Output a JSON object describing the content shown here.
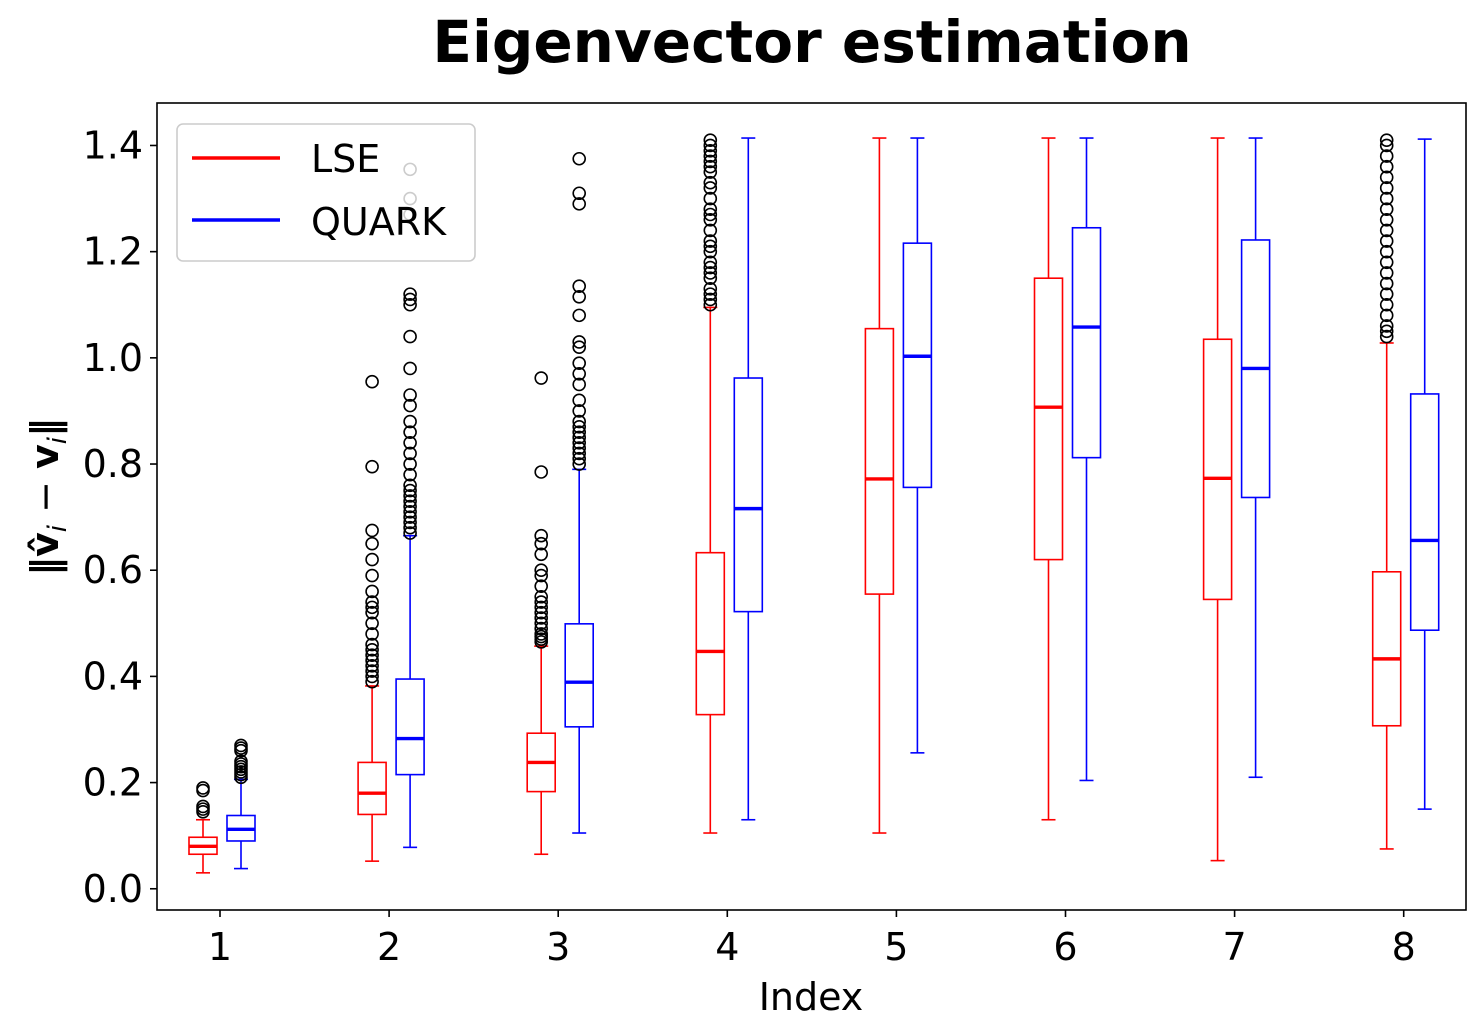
{
  "chart_data": {
    "type": "box",
    "title": "Eigenvector estimation",
    "xlabel": "Index",
    "ylabel": "‖v̂ᵢ − vᵢ‖",
    "ylabel_parts": {
      "bar_left": "‖",
      "v_hat": "v̂",
      "sub1": "i",
      "minus": " − ",
      "v": "v",
      "sub2": "i",
      "bar_right": "‖"
    },
    "categories": [
      "1",
      "2",
      "3",
      "4",
      "5",
      "6",
      "7",
      "8"
    ],
    "ylim": [
      -0.04,
      1.48
    ],
    "yticks": [
      "0.0",
      "0.2",
      "0.4",
      "0.6",
      "0.8",
      "1.0",
      "1.2",
      "1.4"
    ],
    "legend_position": "top-left",
    "grid": false,
    "series": [
      {
        "name": "LSE",
        "color": "#ff0000",
        "boxes": [
          {
            "whislo": 0.03,
            "q1": 0.065,
            "med": 0.08,
            "q3": 0.097,
            "whishi": 0.13,
            "fliers": [
              0.145,
              0.15,
              0.155,
              0.185,
              0.19
            ]
          },
          {
            "whislo": 0.052,
            "q1": 0.14,
            "med": 0.18,
            "q3": 0.238,
            "whishi": 0.382,
            "fliers": [
              0.39,
              0.4,
              0.41,
              0.42,
              0.43,
              0.44,
              0.45,
              0.46,
              0.48,
              0.5,
              0.52,
              0.53,
              0.54,
              0.56,
              0.59,
              0.62,
              0.65,
              0.675,
              0.795,
              0.955
            ]
          },
          {
            "whislo": 0.065,
            "q1": 0.183,
            "med": 0.238,
            "q3": 0.293,
            "whishi": 0.457,
            "fliers": [
              0.465,
              0.47,
              0.475,
              0.48,
              0.49,
              0.5,
              0.51,
              0.52,
              0.53,
              0.54,
              0.55,
              0.57,
              0.59,
              0.6,
              0.63,
              0.65,
              0.665,
              0.785,
              0.962
            ]
          },
          {
            "whislo": 0.105,
            "q1": 0.328,
            "med": 0.447,
            "q3": 0.633,
            "whishi": 1.095,
            "fliers": [
              1.1,
              1.11,
              1.12,
              1.13,
              1.15,
              1.16,
              1.17,
              1.18,
              1.2,
              1.21,
              1.22,
              1.24,
              1.26,
              1.27,
              1.28,
              1.3,
              1.32,
              1.33,
              1.35,
              1.36,
              1.37,
              1.38,
              1.39,
              1.4,
              1.41
            ]
          },
          {
            "whislo": 0.105,
            "q1": 0.555,
            "med": 0.772,
            "q3": 1.055,
            "whishi": 1.414,
            "fliers": []
          },
          {
            "whislo": 0.13,
            "q1": 0.62,
            "med": 0.907,
            "q3": 1.15,
            "whishi": 1.414,
            "fliers": []
          },
          {
            "whislo": 0.053,
            "q1": 0.545,
            "med": 0.773,
            "q3": 1.035,
            "whishi": 1.414,
            "fliers": []
          },
          {
            "whislo": 0.075,
            "q1": 0.307,
            "med": 0.433,
            "q3": 0.597,
            "whishi": 1.028,
            "fliers": [
              1.04,
              1.05,
              1.06,
              1.08,
              1.1,
              1.12,
              1.14,
              1.16,
              1.18,
              1.2,
              1.22,
              1.24,
              1.26,
              1.28,
              1.3,
              1.32,
              1.34,
              1.36,
              1.38,
              1.4,
              1.41
            ]
          }
        ]
      },
      {
        "name": "QUARK",
        "color": "#0000ff",
        "boxes": [
          {
            "whislo": 0.038,
            "q1": 0.09,
            "med": 0.112,
            "q3": 0.138,
            "whishi": 0.206,
            "fliers": [
              0.21,
              0.215,
              0.22,
              0.225,
              0.23,
              0.235,
              0.24,
              0.26,
              0.265,
              0.27
            ]
          },
          {
            "whislo": 0.078,
            "q1": 0.215,
            "med": 0.283,
            "q3": 0.395,
            "whishi": 0.665,
            "fliers": [
              0.67,
              0.68,
              0.69,
              0.7,
              0.71,
              0.72,
              0.73,
              0.74,
              0.75,
              0.76,
              0.78,
              0.8,
              0.82,
              0.84,
              0.86,
              0.88,
              0.91,
              0.93,
              0.98,
              1.04,
              1.1,
              1.11,
              1.12,
              1.27,
              1.3,
              1.355
            ]
          },
          {
            "whislo": 0.105,
            "q1": 0.305,
            "med": 0.389,
            "q3": 0.499,
            "whishi": 0.79,
            "fliers": [
              0.8,
              0.81,
              0.82,
              0.83,
              0.84,
              0.85,
              0.86,
              0.87,
              0.88,
              0.9,
              0.92,
              0.95,
              0.97,
              0.99,
              1.02,
              1.03,
              1.08,
              1.115,
              1.135,
              1.29,
              1.31,
              1.375
            ]
          },
          {
            "whislo": 0.13,
            "q1": 0.522,
            "med": 0.716,
            "q3": 0.962,
            "whishi": 1.414,
            "fliers": []
          },
          {
            "whislo": 0.256,
            "q1": 0.756,
            "med": 1.003,
            "q3": 1.216,
            "whishi": 1.414,
            "fliers": []
          },
          {
            "whislo": 0.204,
            "q1": 0.812,
            "med": 1.058,
            "q3": 1.245,
            "whishi": 1.414,
            "fliers": []
          },
          {
            "whislo": 0.21,
            "q1": 0.737,
            "med": 0.98,
            "q3": 1.222,
            "whishi": 1.414,
            "fliers": []
          },
          {
            "whislo": 0.15,
            "q1": 0.487,
            "med": 0.656,
            "q3": 0.932,
            "whishi": 1.412,
            "fliers": []
          }
        ]
      }
    ]
  }
}
